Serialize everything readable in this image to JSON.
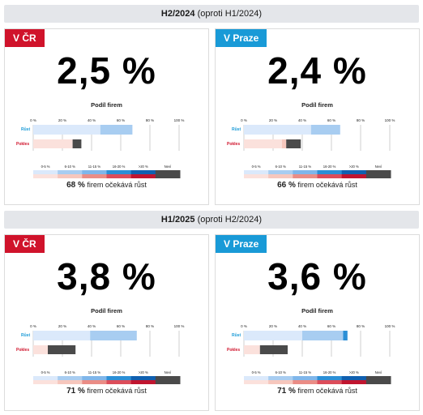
{
  "legend": {
    "categories": [
      "0-5 %",
      "6-10 %",
      "11-15 %",
      "16-20 %",
      ">20 %",
      "Neví"
    ],
    "top_colors": [
      "#dbe9fb",
      "#a8cdf1",
      "#7fb6ea",
      "#2b8fd6",
      "#1060b0",
      "#4a4a4a"
    ],
    "bottom_colors": [
      "#fbe1dc",
      "#f6c7bd",
      "#ea8d86",
      "#dc4d5a",
      "#c0152f",
      "#4a4a4a"
    ]
  },
  "axis_ticks": [
    "0 %",
    "20 %",
    "40 %",
    "60 %",
    "80 %",
    "100 %"
  ],
  "row_labels": {
    "growth": "Růst",
    "decline": "Pokles"
  },
  "periods": [
    {
      "title_bold": "H2/2024",
      "title_rest": " (oproti H1/2024)",
      "panels": [
        {
          "region": "V ČR",
          "tag_color": "#d0132b",
          "big_value": "2,5 %",
          "subtitle": "Podíl firem",
          "footer_value": "68 %",
          "footer_text": " firem očekává růst",
          "chart_data": {
            "type": "bar",
            "categories": [
              "Růst",
              "Pokles"
            ],
            "xlim": [
              0,
              100
            ],
            "growth": [
              {
                "category": "0-5 %",
                "value": 46
              },
              {
                "category": "6-10 %",
                "value": 22
              }
            ],
            "decline": [
              {
                "category": "0-5 %",
                "value": 27
              },
              {
                "category": "6-10 %",
                "value": 0
              },
              {
                "category": "Neví",
                "value": 6
              }
            ]
          }
        },
        {
          "region": "V Praze",
          "tag_color": "#199ad7",
          "big_value": "2,4 %",
          "subtitle": "Podíl firem",
          "footer_value": "66 %",
          "footer_text": " firem očekává růst",
          "chart_data": {
            "type": "bar",
            "categories": [
              "Růst",
              "Pokles"
            ],
            "xlim": [
              0,
              100
            ],
            "growth": [
              {
                "category": "0-5 %",
                "value": 46
              },
              {
                "category": "6-10 %",
                "value": 20
              }
            ],
            "decline": [
              {
                "category": "0-5 %",
                "value": 26
              },
              {
                "category": "6-10 %",
                "value": 3
              },
              {
                "category": "Neví",
                "value": 10
              }
            ]
          }
        }
      ]
    },
    {
      "title_bold": "H1/2025",
      "title_rest": " (oproti H2/2024)",
      "panels": [
        {
          "region": "V ČR",
          "tag_color": "#d0132b",
          "big_value": "3,8 %",
          "subtitle": "Podíl firem",
          "footer_value": "71 %",
          "footer_text": " firem očekává růst",
          "chart_data": {
            "type": "bar",
            "categories": [
              "Růst",
              "Pokles"
            ],
            "xlim": [
              0,
              100
            ],
            "growth": [
              {
                "category": "0-5 %",
                "value": 39
              },
              {
                "category": "6-10 %",
                "value": 32
              }
            ],
            "decline": [
              {
                "category": "0-5 %",
                "value": 10
              },
              {
                "category": "6-10 %",
                "value": 0
              },
              {
                "category": "Neví",
                "value": 19
              }
            ]
          }
        },
        {
          "region": "V Praze",
          "tag_color": "#199ad7",
          "big_value": "3,6 %",
          "subtitle": "Podíl firem",
          "footer_value": "71 %",
          "footer_text": " firem očekává růst",
          "chart_data": {
            "type": "bar",
            "categories": [
              "Růst",
              "Pokles"
            ],
            "xlim": [
              0,
              100
            ],
            "growth": [
              {
                "category": "0-5 %",
                "value": 40
              },
              {
                "category": "6-10 %",
                "value": 28
              },
              {
                "category": "16-20 %",
                "value": 3
              }
            ],
            "decline": [
              {
                "category": "0-5 %",
                "value": 11
              },
              {
                "category": "6-10 %",
                "value": 0
              },
              {
                "category": "Neví",
                "value": 19
              }
            ]
          }
        }
      ]
    }
  ]
}
